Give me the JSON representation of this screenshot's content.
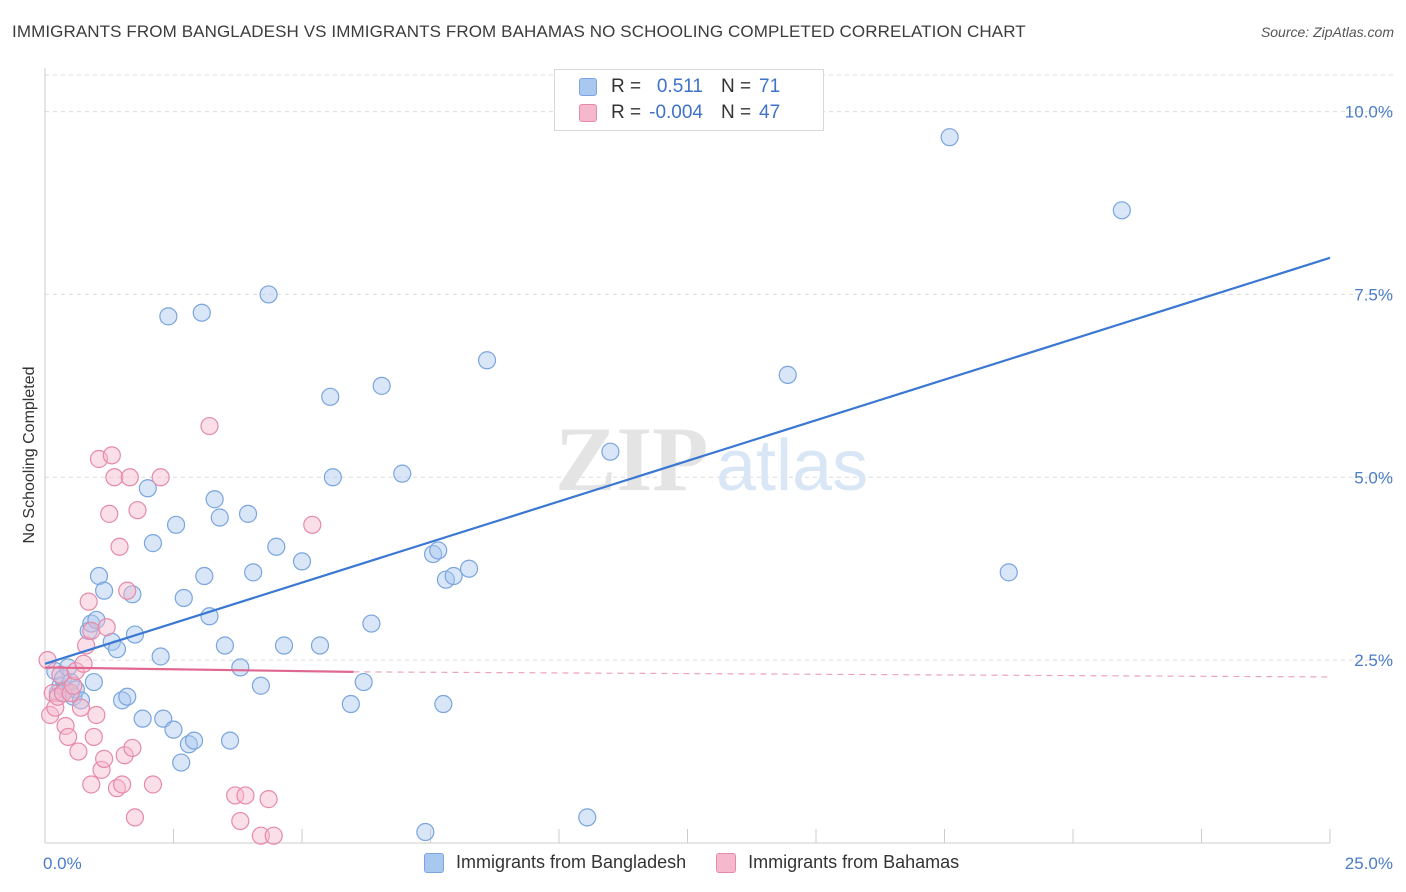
{
  "title": "IMMIGRANTS FROM BANGLADESH VS IMMIGRANTS FROM BAHAMAS NO SCHOOLING COMPLETED CORRELATION CHART",
  "source": "Source: ZipAtlas.com",
  "watermark": {
    "zip": "ZIP",
    "atlas": "atlas"
  },
  "legend": {
    "rows": [
      {
        "r_label": "R =",
        "r_value": "0.511",
        "n_label": "N =",
        "n_value": "71",
        "color": "#a9c8f0",
        "border": "#7aa5de"
      },
      {
        "r_label": "R =",
        "r_value": "-0.004",
        "n_label": "N =",
        "n_value": "47",
        "color": "#f6b8cc",
        "border": "#e58aa8"
      }
    ]
  },
  "bottom_legend": [
    {
      "label": "Immigrants from Bangladesh",
      "color": "#a9c8f0",
      "border": "#7aa5de"
    },
    {
      "label": "Immigrants from Bahamas",
      "color": "#f6b8cc",
      "border": "#e58aa8"
    }
  ],
  "chart_data": {
    "type": "scatter",
    "title": "IMMIGRANTS FROM BANGLADESH VS IMMIGRANTS FROM BAHAMAS NO SCHOOLING COMPLETED CORRELATION CHART",
    "xlabel": "",
    "ylabel": "No Schooling Completed",
    "xlim": [
      0,
      25
    ],
    "ylim": [
      0,
      10.5
    ],
    "x_ticks": [
      "0.0%",
      "25.0%"
    ],
    "y_ticks": [
      {
        "value": 2.5,
        "label": "2.5%"
      },
      {
        "value": 5.0,
        "label": "5.0%"
      },
      {
        "value": 7.5,
        "label": "7.5%"
      },
      {
        "value": 10.0,
        "label": "10.0%"
      }
    ],
    "grid": true,
    "legend_position": "top-center",
    "series": [
      {
        "name": "Immigrants from Bangladesh",
        "color": "#a9c8f0",
        "stroke": "#7aa5de",
        "trend": {
          "x": [
            0,
            25
          ],
          "y": [
            2.45,
            8.0
          ],
          "color": "#3a78d2",
          "style": "solid"
        },
        "points": [
          [
            0.2,
            2.35
          ],
          [
            0.25,
            2.05
          ],
          [
            0.3,
            2.15
          ],
          [
            0.35,
            2.25
          ],
          [
            0.4,
            2.1
          ],
          [
            0.45,
            2.4
          ],
          [
            0.5,
            2.2
          ],
          [
            0.55,
            2.0
          ],
          [
            0.6,
            2.1
          ],
          [
            0.7,
            1.95
          ],
          [
            0.85,
            2.9
          ],
          [
            0.9,
            3.0
          ],
          [
            1.0,
            3.05
          ],
          [
            0.95,
            2.2
          ],
          [
            1.05,
            3.65
          ],
          [
            1.15,
            3.45
          ],
          [
            1.3,
            2.75
          ],
          [
            1.4,
            2.65
          ],
          [
            1.5,
            1.95
          ],
          [
            1.6,
            2.0
          ],
          [
            1.7,
            3.4
          ],
          [
            1.75,
            2.85
          ],
          [
            1.9,
            1.7
          ],
          [
            2.0,
            4.85
          ],
          [
            2.1,
            4.1
          ],
          [
            2.25,
            2.55
          ],
          [
            2.3,
            1.7
          ],
          [
            2.4,
            7.2
          ],
          [
            2.5,
            1.55
          ],
          [
            2.55,
            4.35
          ],
          [
            2.65,
            1.1
          ],
          [
            2.7,
            3.35
          ],
          [
            2.8,
            1.35
          ],
          [
            2.9,
            1.4
          ],
          [
            3.05,
            7.25
          ],
          [
            3.1,
            3.65
          ],
          [
            3.2,
            3.1
          ],
          [
            3.3,
            4.7
          ],
          [
            3.4,
            4.45
          ],
          [
            3.5,
            2.7
          ],
          [
            3.6,
            1.4
          ],
          [
            3.8,
            2.4
          ],
          [
            3.95,
            4.5
          ],
          [
            4.05,
            3.7
          ],
          [
            4.2,
            2.15
          ],
          [
            4.35,
            7.5
          ],
          [
            4.5,
            4.05
          ],
          [
            4.65,
            2.7
          ],
          [
            5.0,
            3.85
          ],
          [
            5.35,
            2.7
          ],
          [
            5.55,
            6.1
          ],
          [
            5.6,
            5.0
          ],
          [
            5.95,
            1.9
          ],
          [
            6.2,
            2.2
          ],
          [
            6.35,
            3.0
          ],
          [
            6.55,
            6.25
          ],
          [
            6.95,
            5.05
          ],
          [
            7.4,
            0.15
          ],
          [
            7.55,
            3.95
          ],
          [
            7.65,
            4.0
          ],
          [
            7.75,
            1.9
          ],
          [
            7.8,
            3.6
          ],
          [
            7.95,
            3.65
          ],
          [
            8.25,
            3.75
          ],
          [
            8.6,
            6.6
          ],
          [
            10.55,
            0.35
          ],
          [
            11.0,
            5.35
          ],
          [
            14.45,
            6.4
          ],
          [
            17.6,
            9.65
          ],
          [
            18.75,
            3.7
          ],
          [
            20.95,
            8.65
          ]
        ]
      },
      {
        "name": "Immigrants from Bahamas",
        "color": "#f6b8cc",
        "stroke": "#e58aa8",
        "trend": {
          "x": [
            0,
            6.0
          ],
          "y": [
            2.4,
            2.34
          ],
          "dashed_to": [
            25,
            2.27
          ],
          "color": "#e06890",
          "style": "solid"
        },
        "points": [
          [
            0.05,
            2.5
          ],
          [
            0.1,
            1.75
          ],
          [
            0.15,
            2.05
          ],
          [
            0.2,
            1.85
          ],
          [
            0.25,
            2.0
          ],
          [
            0.3,
            2.3
          ],
          [
            0.35,
            2.05
          ],
          [
            0.4,
            1.6
          ],
          [
            0.45,
            1.45
          ],
          [
            0.5,
            2.05
          ],
          [
            0.55,
            2.15
          ],
          [
            0.6,
            2.35
          ],
          [
            0.65,
            1.25
          ],
          [
            0.7,
            1.85
          ],
          [
            0.75,
            2.45
          ],
          [
            0.8,
            2.7
          ],
          [
            0.85,
            3.3
          ],
          [
            0.9,
            2.9
          ],
          [
            0.95,
            1.45
          ],
          [
            1.0,
            1.75
          ],
          [
            0.9,
            0.8
          ],
          [
            1.05,
            5.25
          ],
          [
            1.1,
            1.0
          ],
          [
            1.15,
            1.15
          ],
          [
            1.2,
            2.95
          ],
          [
            1.25,
            4.5
          ],
          [
            1.3,
            5.3
          ],
          [
            1.35,
            5.0
          ],
          [
            1.4,
            0.75
          ],
          [
            1.45,
            4.05
          ],
          [
            1.5,
            0.8
          ],
          [
            1.55,
            1.2
          ],
          [
            1.6,
            3.45
          ],
          [
            1.65,
            5.0
          ],
          [
            1.7,
            1.3
          ],
          [
            1.75,
            0.35
          ],
          [
            1.8,
            4.55
          ],
          [
            2.1,
            0.8
          ],
          [
            2.25,
            5.0
          ],
          [
            3.2,
            5.7
          ],
          [
            3.7,
            0.65
          ],
          [
            3.8,
            0.3
          ],
          [
            3.9,
            0.65
          ],
          [
            4.2,
            0.1
          ],
          [
            4.35,
            0.6
          ],
          [
            4.45,
            0.1
          ],
          [
            5.2,
            4.35
          ]
        ]
      }
    ]
  }
}
